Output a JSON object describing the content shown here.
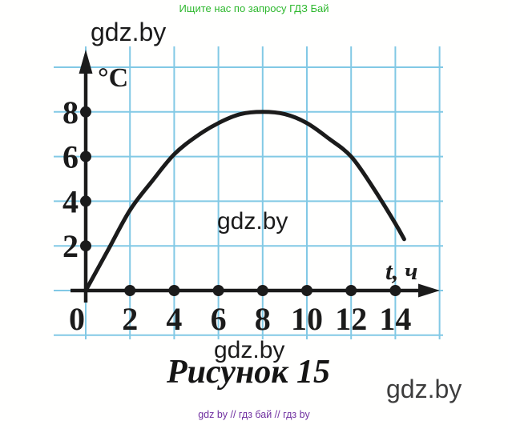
{
  "banner": {
    "text": "Ищите нас по запросу ГДЗ Бай",
    "color": "#2eb82e"
  },
  "watermarks": {
    "top_left": "gdz.by",
    "center": "gdz.by",
    "bottom_center": "gdz.by",
    "bottom_right": "gdz.by"
  },
  "caption": "Рисунок 15",
  "footer": {
    "text": "gdz by // гдз бай // гдз by",
    "color": "#7030a0"
  },
  "colors": {
    "grid": "#82c9e5",
    "ink": "#1b1b1b",
    "background": "#fffffe"
  },
  "chart_data": {
    "type": "line",
    "title": "Рисунок 15",
    "xlabel": "t, ч",
    "ylabel": "°C",
    "x_ticks": [
      "0",
      "2",
      "4",
      "6",
      "8",
      "10",
      "12",
      "14"
    ],
    "y_ticks": [
      "8",
      "6",
      "4",
      "2"
    ],
    "xlim": [
      0,
      16
    ],
    "ylim": [
      0,
      10
    ],
    "grid": true,
    "legend": false,
    "series": [
      {
        "name": "temperature-curve",
        "x": [
          0,
          1,
          2,
          3,
          4,
          5,
          6,
          7,
          8,
          9,
          10,
          11,
          12,
          13,
          14,
          14.4
        ],
        "y": [
          0,
          1.8,
          3.6,
          4.9,
          6.1,
          6.9,
          7.5,
          7.9,
          8.0,
          7.9,
          7.5,
          6.8,
          6.0,
          4.6,
          3.0,
          2.3
        ]
      }
    ]
  }
}
